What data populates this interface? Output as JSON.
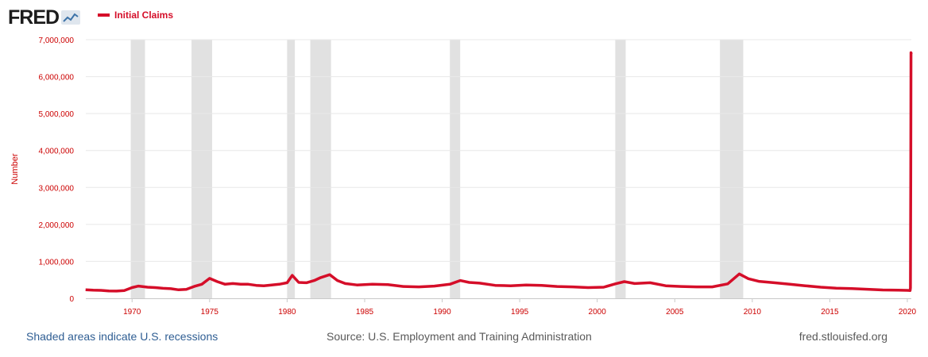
{
  "brand": {
    "logo_text": "FRED",
    "logo_icon": "line-chart-icon"
  },
  "colors": {
    "series": "#d50e29",
    "recession": "#e1e1e1",
    "axis_text": "#cc0000",
    "grid": "#e8e8e8"
  },
  "footer": {
    "recession_note": "Shaded areas indicate U.S. recessions",
    "source": "Source: U.S. Employment and Training Administration",
    "site": "fred.stlouisfed.org"
  },
  "chart_data": {
    "type": "line",
    "title": "",
    "ylabel": "Number",
    "xlabel": "",
    "xlim": [
      "1967-01-07",
      "2020-04-04"
    ],
    "ylim": [
      0,
      7000000
    ],
    "y_ticks": [
      0,
      1000000,
      2000000,
      3000000,
      4000000,
      5000000,
      6000000,
      7000000
    ],
    "y_tick_labels": [
      "0",
      "1,000,000",
      "2,000,000",
      "3,000,000",
      "4,000,000",
      "5,000,000",
      "6,000,000",
      "7,000,000"
    ],
    "x_ticks": [
      1970,
      1975,
      1980,
      1985,
      1990,
      1995,
      2000,
      2005,
      2010,
      2015,
      2020
    ],
    "x_tick_labels": [
      "1970",
      "1975",
      "1980",
      "1985",
      "1990",
      "1995",
      "2000",
      "2005",
      "2010",
      "2015",
      "2020"
    ],
    "grid": true,
    "legend": "top-left",
    "recessions": [
      [
        "1969-12-01",
        "1970-11-01"
      ],
      [
        "1973-11-01",
        "1975-03-01"
      ],
      [
        "1980-01-01",
        "1980-07-01"
      ],
      [
        "1981-07-01",
        "1982-11-01"
      ],
      [
        "1990-07-01",
        "1991-03-01"
      ],
      [
        "2001-03-01",
        "2001-11-01"
      ],
      [
        "2007-12-01",
        "2009-06-01"
      ]
    ],
    "series": [
      {
        "name": "Initial Claims",
        "points": [
          [
            "1967-01",
            230000
          ],
          [
            "1967-07",
            220000
          ],
          [
            "1968-01",
            215000
          ],
          [
            "1968-07",
            200000
          ],
          [
            "1969-01",
            195000
          ],
          [
            "1969-07",
            210000
          ],
          [
            "1970-01",
            290000
          ],
          [
            "1970-06",
            330000
          ],
          [
            "1971-01",
            300000
          ],
          [
            "1971-07",
            290000
          ],
          [
            "1972-01",
            270000
          ],
          [
            "1972-07",
            260000
          ],
          [
            "1973-01",
            230000
          ],
          [
            "1973-07",
            240000
          ],
          [
            "1974-01",
            320000
          ],
          [
            "1974-07",
            380000
          ],
          [
            "1975-01",
            540000
          ],
          [
            "1975-07",
            450000
          ],
          [
            "1976-01",
            380000
          ],
          [
            "1976-07",
            400000
          ],
          [
            "1977-01",
            380000
          ],
          [
            "1977-07",
            380000
          ],
          [
            "1978-01",
            350000
          ],
          [
            "1978-07",
            340000
          ],
          [
            "1979-01",
            360000
          ],
          [
            "1979-07",
            380000
          ],
          [
            "1980-01",
            420000
          ],
          [
            "1980-05",
            620000
          ],
          [
            "1980-10",
            430000
          ],
          [
            "1981-04",
            420000
          ],
          [
            "1981-10",
            480000
          ],
          [
            "1982-03",
            560000
          ],
          [
            "1982-10",
            640000
          ],
          [
            "1983-04",
            480000
          ],
          [
            "1983-10",
            400000
          ],
          [
            "1984-07",
            360000
          ],
          [
            "1985-07",
            380000
          ],
          [
            "1986-07",
            370000
          ],
          [
            "1987-07",
            320000
          ],
          [
            "1988-07",
            310000
          ],
          [
            "1989-07",
            330000
          ],
          [
            "1990-07",
            380000
          ],
          [
            "1991-03",
            480000
          ],
          [
            "1991-10",
            430000
          ],
          [
            "1992-06",
            410000
          ],
          [
            "1993-06",
            350000
          ],
          [
            "1994-06",
            340000
          ],
          [
            "1995-06",
            360000
          ],
          [
            "1996-06",
            350000
          ],
          [
            "1997-06",
            320000
          ],
          [
            "1998-06",
            310000
          ],
          [
            "1999-06",
            290000
          ],
          [
            "2000-06",
            300000
          ],
          [
            "2001-03",
            390000
          ],
          [
            "2001-10",
            450000
          ],
          [
            "2002-06",
            400000
          ],
          [
            "2003-06",
            420000
          ],
          [
            "2004-06",
            340000
          ],
          [
            "2005-06",
            320000
          ],
          [
            "2006-06",
            310000
          ],
          [
            "2007-06",
            310000
          ],
          [
            "2008-06",
            390000
          ],
          [
            "2009-03",
            660000
          ],
          [
            "2009-10",
            530000
          ],
          [
            "2010-06",
            460000
          ],
          [
            "2011-06",
            420000
          ],
          [
            "2012-06",
            380000
          ],
          [
            "2013-06",
            340000
          ],
          [
            "2014-06",
            300000
          ],
          [
            "2015-06",
            275000
          ],
          [
            "2016-06",
            265000
          ],
          [
            "2017-06",
            245000
          ],
          [
            "2018-06",
            225000
          ],
          [
            "2019-06",
            220000
          ],
          [
            "2020-01",
            215000
          ],
          [
            "2020-03-07",
            211000
          ],
          [
            "2020-03-14",
            282000
          ],
          [
            "2020-03-21",
            3307000
          ],
          [
            "2020-03-28",
            6648000
          ],
          [
            "2020-04-04",
            6615000
          ]
        ]
      }
    ]
  }
}
